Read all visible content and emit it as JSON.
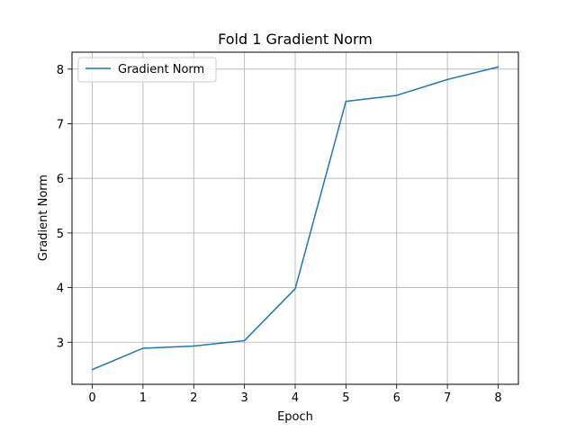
{
  "chart_data": {
    "type": "line",
    "title": "Fold 1 Gradient Norm",
    "xlabel": "Epoch",
    "ylabel": "Gradient Norm",
    "x": [
      0,
      1,
      2,
      3,
      4,
      5,
      6,
      7,
      8
    ],
    "series": [
      {
        "name": "Gradient Norm",
        "values": [
          2.5,
          2.89,
          2.93,
          3.03,
          3.98,
          7.41,
          7.52,
          7.81,
          8.04
        ],
        "color": "#1f77b4"
      }
    ],
    "xlim": [
      -0.4,
      8.4
    ],
    "ylim": [
      2.23,
      8.31
    ],
    "xticks": [
      "0",
      "1",
      "2",
      "3",
      "4",
      "5",
      "6",
      "7",
      "8"
    ],
    "yticks": [
      "3",
      "4",
      "5",
      "6",
      "7",
      "8"
    ],
    "grid": true,
    "legend_position": "top-left"
  }
}
